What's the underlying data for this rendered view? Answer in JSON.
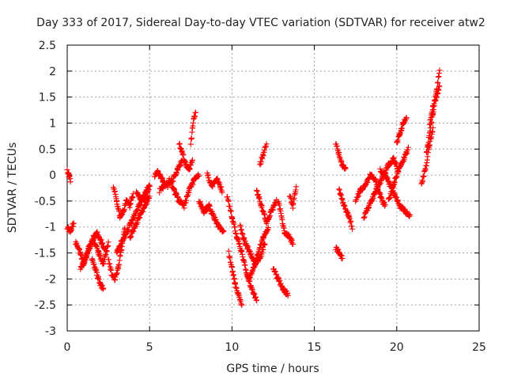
{
  "chart_data": {
    "type": "scatter",
    "title": "Day 333 of 2017, Sidereal Day-to-day VTEC variation (SDTVAR) for receiver atw2",
    "xlabel": "GPS time / hours",
    "ylabel": "SDTVAR / TECUs",
    "xlim": [
      0,
      25
    ],
    "ylim": [
      -3,
      2.5
    ],
    "xticks": [
      "0",
      "5",
      "10",
      "15",
      "20",
      "25"
    ],
    "yticks": [
      "-3",
      "-2.5",
      "-2",
      "-1.5",
      "-1",
      "-0.5",
      "0",
      "0.5",
      "1",
      "1.5",
      "2",
      "2.5"
    ],
    "grid": true,
    "marker": "+",
    "marker_color": "#ff0000",
    "series": [
      {
        "name": "atw2",
        "segments": [
          {
            "x": [
              0.0,
              0.2,
              0.4
            ],
            "y": [
              -1.0,
              -1.1,
              -0.9
            ]
          },
          {
            "x": [
              0.0,
              0.1,
              0.2
            ],
            "y": [
              0.1,
              0.0,
              -0.1
            ]
          },
          {
            "x": [
              0.5,
              0.8,
              1.0,
              1.3,
              1.6,
              1.9,
              2.2,
              2.5
            ],
            "y": [
              -1.3,
              -1.5,
              -1.7,
              -1.4,
              -1.2,
              -1.5,
              -1.7,
              -1.3
            ]
          },
          {
            "x": [
              0.8,
              1.1,
              1.5,
              1.8,
              2.1,
              2.4
            ],
            "y": [
              -1.8,
              -1.6,
              -1.3,
              -1.1,
              -1.3,
              -1.5
            ]
          },
          {
            "x": [
              1.5,
              1.8,
              2.0,
              2.2
            ],
            "y": [
              -1.6,
              -1.9,
              -2.1,
              -2.2
            ]
          },
          {
            "x": [
              2.5,
              2.7,
              2.9,
              3.1,
              3.3,
              3.5
            ],
            "y": [
              -1.6,
              -1.9,
              -2.0,
              -1.8,
              -1.4,
              -1.0
            ]
          },
          {
            "x": [
              2.8,
              3.0,
              3.2,
              3.4,
              3.6,
              3.8,
              4.0
            ],
            "y": [
              -0.2,
              -0.5,
              -0.8,
              -0.7,
              -0.5,
              -0.6,
              -0.4
            ]
          },
          {
            "x": [
              3.0,
              3.3,
              3.6,
              3.9,
              4.2,
              4.5,
              4.8,
              5.0
            ],
            "y": [
              -1.5,
              -1.3,
              -1.1,
              -0.9,
              -0.7,
              -0.5,
              -0.3,
              -0.2
            ]
          },
          {
            "x": [
              3.8,
              4.1,
              4.4,
              4.7,
              5.0
            ],
            "y": [
              -1.2,
              -1.0,
              -0.8,
              -0.6,
              -0.4
            ]
          },
          {
            "x": [
              4.2,
              4.5,
              4.8,
              5.0
            ],
            "y": [
              -0.3,
              -0.5,
              -0.4,
              -0.2
            ]
          },
          {
            "x": [
              5.3,
              5.5,
              5.8,
              6.1,
              6.4,
              6.7,
              7.0
            ],
            "y": [
              0.0,
              0.05,
              -0.1,
              -0.2,
              -0.1,
              0.1,
              0.3
            ]
          },
          {
            "x": [
              5.6,
              5.9,
              6.2,
              6.5,
              6.8,
              7.1,
              7.4,
              7.7,
              8.0
            ],
            "y": [
              -0.3,
              -0.2,
              -0.1,
              -0.3,
              -0.5,
              -0.6,
              -0.3,
              -0.1,
              0.0
            ]
          },
          {
            "x": [
              6.8,
              7.0,
              7.2,
              7.4,
              7.6
            ],
            "y": [
              0.6,
              0.4,
              0.2,
              0.1,
              0.3
            ]
          },
          {
            "x": [
              7.5,
              7.6,
              7.7,
              7.8
            ],
            "y": [
              0.6,
              0.9,
              1.1,
              1.2
            ]
          },
          {
            "x": [
              8.0,
              8.3,
              8.6,
              8.9,
              9.2,
              9.5
            ],
            "y": [
              -0.5,
              -0.7,
              -0.6,
              -0.8,
              -1.0,
              -1.1
            ]
          },
          {
            "x": [
              8.5,
              8.8,
              9.1,
              9.4
            ],
            "y": [
              0.0,
              -0.2,
              -0.1,
              -0.3
            ]
          },
          {
            "x": [
              9.8,
              10.0,
              10.2,
              10.4,
              10.6
            ],
            "y": [
              -1.5,
              -1.8,
              -2.1,
              -2.3,
              -2.5
            ]
          },
          {
            "x": [
              9.7,
              10.0,
              10.3,
              10.6,
              10.9,
              11.2,
              11.5
            ],
            "y": [
              -0.4,
              -0.8,
              -1.2,
              -1.5,
              -1.9,
              -2.2,
              -2.4
            ]
          },
          {
            "x": [
              10.5,
              10.8,
              11.1,
              11.4,
              11.7,
              12.0
            ],
            "y": [
              -1.0,
              -1.3,
              -1.5,
              -1.7,
              -1.6,
              -1.3
            ]
          },
          {
            "x": [
              11.0,
              11.3,
              11.6,
              11.9,
              12.2
            ],
            "y": [
              -2.0,
              -1.8,
              -1.5,
              -1.2,
              -1.0
            ]
          },
          {
            "x": [
              11.5,
              11.8,
              12.1,
              12.4,
              12.7
            ],
            "y": [
              -0.3,
              -0.6,
              -0.9,
              -0.7,
              -0.5
            ]
          },
          {
            "x": [
              11.7,
              11.9,
              12.1
            ],
            "y": [
              0.2,
              0.4,
              0.6
            ]
          },
          {
            "x": [
              12.5,
              12.8,
              13.1,
              13.4
            ],
            "y": [
              -1.8,
              -2.0,
              -2.2,
              -2.3
            ]
          },
          {
            "x": [
              12.8,
              13.0,
              13.2,
              13.5,
              13.7
            ],
            "y": [
              -0.5,
              -0.8,
              -1.1,
              -1.2,
              -1.3
            ]
          },
          {
            "x": [
              13.5,
              13.7,
              13.9
            ],
            "y": [
              -0.4,
              -0.6,
              -0.2
            ]
          },
          {
            "x": [
              16.3,
              16.5,
              16.7
            ],
            "y": [
              -1.4,
              -1.5,
              -1.6
            ]
          },
          {
            "x": [
              16.3,
              16.5,
              16.7,
              16.9
            ],
            "y": [
              0.6,
              0.4,
              0.2,
              0.1
            ]
          },
          {
            "x": [
              16.5,
              16.8,
              17.1,
              17.3
            ],
            "y": [
              -0.3,
              -0.6,
              -0.8,
              -1.0
            ]
          },
          {
            "x": [
              17.5,
              17.8,
              18.1,
              18.4,
              18.7,
              19.0,
              19.3
            ],
            "y": [
              -0.5,
              -0.3,
              -0.2,
              0.0,
              -0.1,
              -0.4,
              -0.6
            ]
          },
          {
            "x": [
              18.0,
              18.3,
              18.6,
              18.9,
              19.2,
              19.5,
              19.8,
              20.1
            ],
            "y": [
              -0.8,
              -0.6,
              -0.4,
              -0.2,
              0.0,
              0.2,
              0.3,
              0.1
            ]
          },
          {
            "x": [
              19.0,
              19.3,
              19.6,
              19.9,
              20.2,
              20.5,
              20.8
            ],
            "y": [
              0.1,
              0.0,
              -0.2,
              -0.4,
              -0.6,
              -0.7,
              -0.8
            ]
          },
          {
            "x": [
              19.5,
              19.8,
              20.1,
              20.4,
              20.7
            ],
            "y": [
              -0.5,
              -0.2,
              0.1,
              0.3,
              0.5
            ]
          },
          {
            "x": [
              20.0,
              20.2,
              20.4,
              20.6
            ],
            "y": [
              0.6,
              0.8,
              1.0,
              1.1
            ]
          },
          {
            "x": [
              21.5,
              21.8,
              22.0,
              22.2
            ],
            "y": [
              -0.2,
              0.2,
              0.6,
              0.9
            ]
          },
          {
            "x": [
              21.8,
              22.0,
              22.2,
              22.4,
              22.6
            ],
            "y": [
              0.4,
              0.8,
              1.2,
              1.6,
              2.0
            ]
          },
          {
            "x": [
              22.0,
              22.2,
              22.4,
              22.6
            ],
            "y": [
              1.0,
              1.3,
              1.5,
              1.7
            ]
          }
        ]
      }
    ]
  }
}
